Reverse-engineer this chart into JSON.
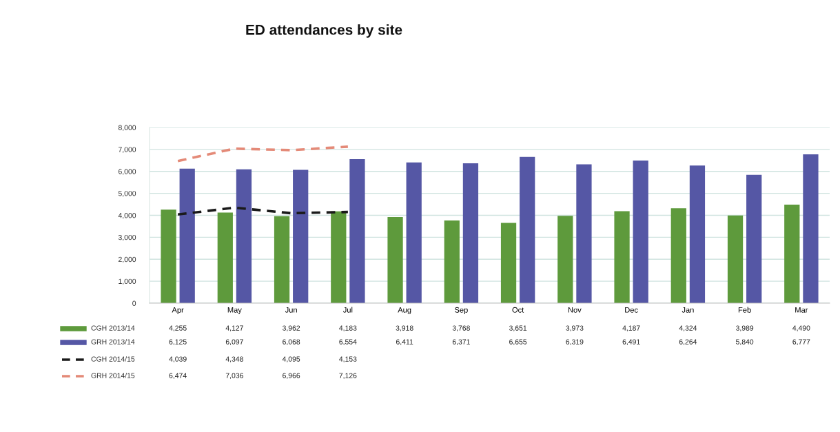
{
  "chart_data": {
    "type": "bar",
    "title": "ED attendances by site",
    "categories": [
      "Apr",
      "May",
      "Jun",
      "Jul",
      "Aug",
      "Sep",
      "Oct",
      "Nov",
      "Dec",
      "Jan",
      "Feb",
      "Mar"
    ],
    "series": [
      {
        "name": "CGH 2013/14",
        "color": "#5e9a3c",
        "values": [
          4255,
          4127,
          3962,
          4183,
          3918,
          3768,
          3651,
          3973,
          4187,
          4324,
          3989,
          4490
        ],
        "value_labels": [
          "4,255",
          "4,127",
          "3,962",
          "4,183",
          "3,918",
          "3,768",
          "3,651",
          "3,973",
          "4,187",
          "4,324",
          "3,989",
          "4,490"
        ]
      },
      {
        "name": "GRH 2013/14",
        "color": "#5557a5",
        "values": [
          6125,
          6097,
          6068,
          6554,
          6411,
          6371,
          6655,
          6319,
          6491,
          6264,
          5840,
          6777
        ],
        "value_labels": [
          "6,125",
          "6,097",
          "6,068",
          "6,554",
          "6,411",
          "6,371",
          "6,655",
          "6,319",
          "6,491",
          "6,264",
          "5,840",
          "6,777"
        ]
      },
      {
        "name": "CGH 2014/15",
        "type": "line",
        "line_style": "dashed",
        "color": "#1a1a1a",
        "values": [
          4039,
          4348,
          4095,
          4153,
          null,
          null,
          null,
          null,
          null,
          null,
          null,
          null
        ],
        "value_labels": [
          "4,039",
          "4,348",
          "4,095",
          "4,153",
          null,
          null,
          null,
          null,
          null,
          null,
          null,
          null
        ]
      },
      {
        "name": "GRH 2014/15",
        "type": "line",
        "line_style": "dashed",
        "color": "#e48a78",
        "values": [
          6474,
          7036,
          6966,
          7126,
          null,
          null,
          null,
          null,
          null,
          null,
          null,
          null
        ],
        "value_labels": [
          "6,474",
          "7,036",
          "6,966",
          "7,126",
          null,
          null,
          null,
          null,
          null,
          null,
          null,
          null
        ]
      }
    ],
    "ylim": [
      0,
      8000
    ],
    "yticks": [
      {
        "value": 0,
        "label": "0"
      },
      {
        "value": 1000,
        "label": "1,000"
      },
      {
        "value": 2000,
        "label": "2,000"
      },
      {
        "value": 3000,
        "label": "3,000"
      },
      {
        "value": 4000,
        "label": "4,000"
      },
      {
        "value": 5000,
        "label": "5,000"
      },
      {
        "value": 6000,
        "label": "6,000"
      },
      {
        "value": 7000,
        "label": "7,000"
      },
      {
        "value": 8000,
        "label": "8,000"
      }
    ],
    "grid": "y",
    "legend": "bottom left"
  }
}
